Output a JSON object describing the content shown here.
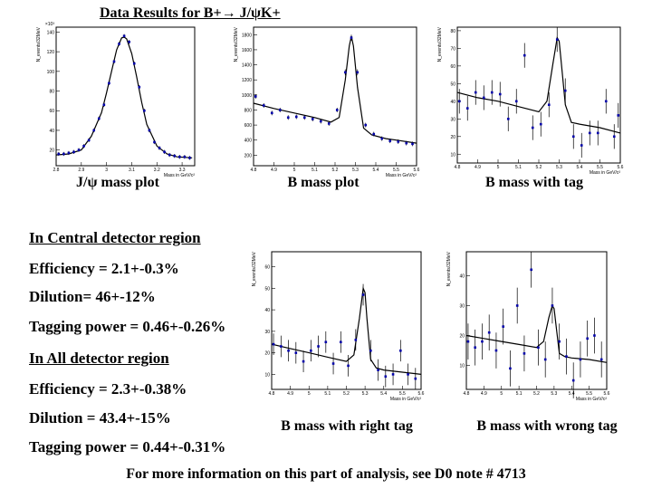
{
  "title": "Data Results for B+→ J/ψK+",
  "sections": [
    {
      "heading": "In Central detector region",
      "lines": [
        "Efficiency = 2.1+-0.3%",
        "Dilution= 46+-12%",
        "Tagging power = 0.46+-0.26%"
      ]
    },
    {
      "heading": "In All detector region",
      "lines": [
        "Efficiency = 2.3+-0.38%",
        "Dilution = 43.4+-15%",
        "Tagging power = 0.44+-0.31%"
      ]
    }
  ],
  "footer": "For more information on this part of analysis, see D0 note # 4713",
  "chart_data": [
    {
      "type": "scatter",
      "caption": "J/ψ mass plot",
      "x_label": "Mass in GeV/c²",
      "y_label": "N_events/32MeV",
      "y_scale_label": "×10³",
      "color": "#0000aa",
      "xlim": [
        2.8,
        3.35
      ],
      "xticks": [
        2.8,
        2.9,
        3,
        3.1,
        3.2,
        3.3
      ],
      "ylim": [
        4,
        145
      ],
      "yticks": [
        20,
        40,
        60,
        80,
        100,
        120,
        140
      ],
      "x": [
        2.81,
        2.83,
        2.85,
        2.87,
        2.89,
        2.91,
        2.93,
        2.95,
        2.97,
        2.99,
        3.01,
        3.03,
        3.05,
        3.07,
        3.09,
        3.11,
        3.13,
        3.15,
        3.17,
        3.19,
        3.21,
        3.23,
        3.25,
        3.27,
        3.29,
        3.31,
        3.33
      ],
      "values": [
        16,
        16,
        17,
        18,
        20,
        24,
        30,
        40,
        52,
        66,
        88,
        110,
        128,
        136,
        130,
        108,
        84,
        60,
        40,
        28,
        22,
        18,
        15,
        14,
        13,
        13,
        12
      ],
      "errors": [
        2,
        2,
        2,
        2,
        2,
        2,
        2,
        2,
        2,
        2,
        2,
        2,
        2,
        2,
        2,
        2,
        2,
        2,
        2,
        2,
        2,
        2,
        2,
        2,
        2,
        2,
        2
      ],
      "fit_x": [
        2.8,
        2.85,
        2.9,
        2.94,
        2.98,
        3.0,
        3.02,
        3.04,
        3.06,
        3.07,
        3.08,
        3.1,
        3.12,
        3.14,
        3.16,
        3.2,
        3.24,
        3.28,
        3.34
      ],
      "fit_values": [
        15,
        16,
        20,
        34,
        58,
        78,
        100,
        122,
        134,
        135,
        133,
        118,
        94,
        68,
        46,
        24,
        16,
        13,
        12
      ]
    },
    {
      "type": "scatter",
      "caption": "B mass plot",
      "x_label": "Mass in GeV/c²",
      "y_label": "N_events/32MeV",
      "color": "#0000aa",
      "xlim": [
        4.8,
        5.6
      ],
      "xticks": [
        4.8,
        4.9,
        5,
        5.1,
        5.2,
        5.3,
        5.4,
        5.5,
        5.6
      ],
      "ylim": [
        60,
        1900
      ],
      "yticks": [
        200,
        400,
        600,
        800,
        1000,
        1200,
        1400,
        1600,
        1800
      ],
      "x": [
        4.81,
        4.85,
        4.89,
        4.93,
        4.97,
        5.01,
        5.05,
        5.09,
        5.13,
        5.17,
        5.21,
        5.25,
        5.28,
        5.31,
        5.35,
        5.39,
        5.43,
        5.47,
        5.51,
        5.55,
        5.58
      ],
      "values": [
        980,
        860,
        760,
        800,
        700,
        710,
        700,
        680,
        650,
        620,
        800,
        1300,
        1760,
        1300,
        600,
        480,
        420,
        390,
        380,
        360,
        350
      ],
      "errors": [
        30,
        30,
        30,
        30,
        30,
        30,
        30,
        30,
        30,
        30,
        30,
        40,
        40,
        40,
        30,
        30,
        30,
        30,
        30,
        30,
        30
      ],
      "fit_x": [
        4.8,
        4.9,
        5.0,
        5.1,
        5.18,
        5.22,
        5.25,
        5.27,
        5.28,
        5.29,
        5.31,
        5.34,
        5.38,
        5.45,
        5.5,
        5.6
      ],
      "fit_values": [
        890,
        820,
        760,
        700,
        640,
        700,
        1200,
        1650,
        1780,
        1650,
        1100,
        560,
        470,
        420,
        400,
        360
      ]
    },
    {
      "type": "scatter",
      "caption": "B mass with tag",
      "x_label": "Mass in GeV/c²",
      "y_label": "N_events/32MeV",
      "color": "#0000aa",
      "xlim": [
        4.8,
        5.6
      ],
      "xticks": [
        4.8,
        4.9,
        5,
        5.1,
        5.2,
        5.3,
        5.4,
        5.5,
        5.6
      ],
      "ylim": [
        5,
        82
      ],
      "yticks": [
        10,
        20,
        30,
        40,
        50,
        60,
        70,
        80
      ],
      "x": [
        4.81,
        4.85,
        4.89,
        4.93,
        4.97,
        5.01,
        5.05,
        5.09,
        5.13,
        5.17,
        5.21,
        5.25,
        5.29,
        5.33,
        5.37,
        5.41,
        5.45,
        5.49,
        5.53,
        5.57,
        5.59
      ],
      "values": [
        40,
        36,
        45,
        42,
        45,
        44,
        30,
        40,
        66,
        25,
        27,
        38,
        75,
        46,
        20,
        15,
        22,
        22,
        40,
        20,
        32
      ],
      "errors": [
        7,
        7,
        7,
        7,
        7,
        7,
        7,
        7,
        7,
        7,
        7,
        7,
        7,
        7,
        7,
        7,
        7,
        7,
        7,
        7,
        7
      ],
      "fit_x": [
        4.8,
        4.9,
        5.0,
        5.1,
        5.2,
        5.24,
        5.27,
        5.29,
        5.3,
        5.31,
        5.33,
        5.36,
        5.4,
        5.5,
        5.6
      ],
      "fit_values": [
        45,
        42,
        40,
        37,
        34,
        40,
        62,
        76,
        74,
        62,
        38,
        28,
        27,
        25,
        22
      ]
    },
    {
      "type": "scatter",
      "caption": "B mass with right tag",
      "x_label": "Mass in GeV/c²",
      "y_label": "N_events/32MeV",
      "color": "#0000aa",
      "xlim": [
        4.8,
        5.6
      ],
      "xticks": [
        4.8,
        4.9,
        5,
        5.1,
        5.2,
        5.3,
        5.4,
        5.5,
        5.6
      ],
      "ylim": [
        3,
        67
      ],
      "yticks": [
        10,
        20,
        30,
        40,
        50,
        60
      ],
      "x": [
        4.81,
        4.85,
        4.89,
        4.93,
        4.97,
        5.01,
        5.05,
        5.09,
        5.13,
        5.17,
        5.21,
        5.25,
        5.29,
        5.33,
        5.37,
        5.41,
        5.45,
        5.49,
        5.53,
        5.57
      ],
      "values": [
        24,
        23,
        21,
        20,
        16,
        21,
        23,
        25,
        15,
        25,
        14,
        26,
        47,
        21,
        12,
        9,
        10,
        21,
        10,
        8
      ],
      "errors": [
        5,
        5,
        5,
        5,
        5,
        5,
        5,
        5,
        5,
        5,
        5,
        5,
        5,
        5,
        5,
        5,
        5,
        5,
        5,
        5
      ],
      "fit_x": [
        4.8,
        4.9,
        5.0,
        5.1,
        5.2,
        5.24,
        5.27,
        5.29,
        5.3,
        5.31,
        5.33,
        5.36,
        5.4,
        5.5,
        5.6
      ],
      "fit_values": [
        24,
        22,
        20,
        18,
        16,
        19,
        36,
        50,
        48,
        36,
        17,
        13,
        12,
        11,
        10
      ]
    },
    {
      "type": "scatter",
      "caption": "B mass with wrong tag",
      "x_label": "Mass in GeV/c²",
      "y_label": "N_events/32MeV",
      "color": "#0000aa",
      "xlim": [
        4.8,
        5.6
      ],
      "xticks": [
        4.8,
        4.9,
        5,
        5.1,
        5.2,
        5.3,
        5.4,
        5.5,
        5.6
      ],
      "ylim": [
        2,
        48
      ],
      "yticks": [
        10,
        20,
        30,
        40
      ],
      "x": [
        4.81,
        4.85,
        4.89,
        4.93,
        4.97,
        5.01,
        5.05,
        5.09,
        5.13,
        5.17,
        5.21,
        5.25,
        5.29,
        5.33,
        5.37,
        5.41,
        5.45,
        5.49,
        5.53,
        5.57
      ],
      "values": [
        18,
        16,
        18,
        21,
        15,
        23,
        9,
        30,
        14,
        42,
        16,
        12,
        30,
        18,
        13,
        5,
        12,
        19,
        20,
        12
      ],
      "errors": [
        6,
        6,
        6,
        6,
        6,
        6,
        6,
        6,
        6,
        6,
        6,
        6,
        6,
        6,
        6,
        6,
        6,
        6,
        6,
        6
      ],
      "fit_x": [
        4.8,
        4.9,
        5.0,
        5.1,
        5.2,
        5.24,
        5.27,
        5.29,
        5.3,
        5.31,
        5.33,
        5.36,
        5.4,
        5.5,
        5.6
      ],
      "fit_values": [
        20,
        19,
        18,
        17,
        16,
        18,
        26,
        30,
        29,
        24,
        14,
        13,
        12.5,
        12,
        11
      ]
    }
  ]
}
